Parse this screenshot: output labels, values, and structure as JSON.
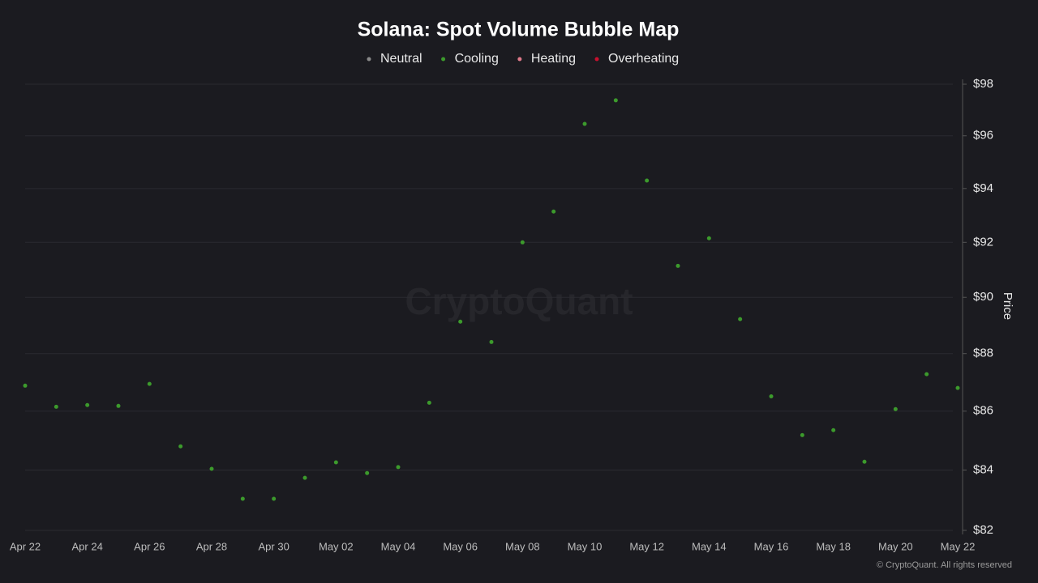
{
  "chart_data": {
    "type": "scatter",
    "title": "Solana: Spot Volume Bubble Map",
    "watermark": "CryptoQuant",
    "footer": "© CryptoQuant. All rights reserved",
    "y_label": "Price",
    "categories": [
      "Apr 22",
      null,
      "Apr 24",
      null,
      "Apr 26",
      null,
      "Apr 28",
      null,
      "Apr 30",
      null,
      "May 02",
      null,
      "May 04",
      null,
      "May 06",
      null,
      "May 08",
      null,
      "May 10",
      null,
      "May 12",
      null,
      "May 14",
      null,
      "May 16",
      null,
      "May 18",
      null,
      "May 20",
      null,
      "May 22"
    ],
    "series": [
      {
        "name": "Neutral",
        "color": "#8a8a8a",
        "values": [
          null,
          null,
          null,
          null,
          null,
          null,
          null,
          null,
          null,
          null,
          null,
          null,
          null,
          null,
          null,
          null,
          null,
          null,
          null,
          null,
          null,
          null,
          null,
          null,
          null,
          null,
          null,
          null,
          null,
          null,
          null
        ]
      },
      {
        "name": "Cooling",
        "color": "#3c9a2c",
        "values": [
          86.88,
          86.15,
          86.21,
          86.18,
          86.94,
          84.8,
          84.04,
          83.04,
          83.04,
          83.74,
          84.26,
          83.9,
          84.1,
          86.29,
          89.13,
          88.41,
          92.0,
          93.14,
          96.46,
          97.37,
          94.3,
          91.14,
          92.15,
          89.22,
          86.51,
          85.18,
          85.35,
          84.28,
          86.07,
          87.28,
          86.8
        ]
      },
      {
        "name": "Heating",
        "color": "#e07a8a",
        "values": [
          null,
          null,
          null,
          null,
          null,
          null,
          null,
          null,
          null,
          null,
          null,
          null,
          null,
          null,
          null,
          null,
          null,
          null,
          null,
          null,
          null,
          null,
          null,
          null,
          null,
          null,
          null,
          null,
          null,
          null,
          null
        ]
      },
      {
        "name": "Overheating",
        "color": "#c8102e",
        "values": [
          null,
          null,
          null,
          null,
          null,
          null,
          null,
          null,
          null,
          null,
          null,
          null,
          null,
          null,
          null,
          null,
          null,
          null,
          null,
          null,
          null,
          null,
          null,
          null,
          null,
          null,
          null,
          null,
          null,
          null,
          null
        ]
      }
    ],
    "ylim": [
      82,
      98
    ],
    "log_y": true,
    "grid": true,
    "yticks": [
      {
        "value": 82,
        "label": "$82"
      },
      {
        "value": 84,
        "label": "$84"
      },
      {
        "value": 86,
        "label": "$86"
      },
      {
        "value": 88,
        "label": "$88"
      },
      {
        "value": 90,
        "label": "$90"
      },
      {
        "value": 92,
        "label": "$92"
      },
      {
        "value": 94,
        "label": "$94"
      },
      {
        "value": 96,
        "label": "$96"
      },
      {
        "value": 98,
        "label": "$98"
      }
    ]
  }
}
